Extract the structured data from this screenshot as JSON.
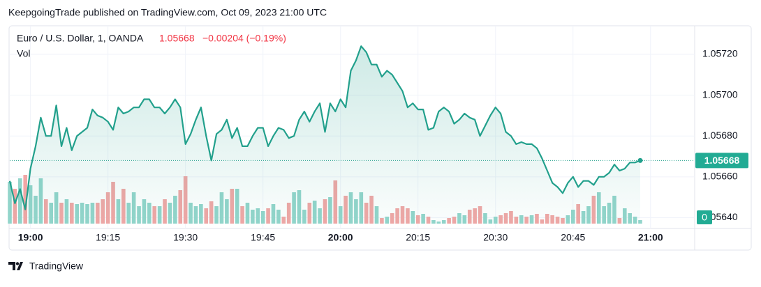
{
  "chart_data": {
    "type": "line",
    "title": "KeepgoingTrade published on TradingView.com, Oct 09, 2023 21:00 UTC",
    "symbol": "Euro / U.S. Dollar, 1, OANDA",
    "legend_price": 1.05668,
    "legend_change": "−0.00204 (−0.19%)",
    "volume_name": "Vol",
    "brand": "TradingView",
    "last_price": 1.05668,
    "volume_axis_label": 0,
    "line_color": "#22a08c",
    "up_color": "#93d5cb",
    "down_color": "#f1a7a6",
    "label_color": "#22ab94",
    "change_color": "#f23645",
    "grid": true,
    "x": [
      "18:56",
      "18:57",
      "18:58",
      "18:59",
      "19:00",
      "19:01",
      "19:02",
      "19:03",
      "19:04",
      "19:05",
      "19:06",
      "19:07",
      "19:08",
      "19:09",
      "19:10",
      "19:11",
      "19:12",
      "19:13",
      "19:14",
      "19:15",
      "19:16",
      "19:17",
      "19:18",
      "19:19",
      "19:20",
      "19:21",
      "19:22",
      "19:23",
      "19:24",
      "19:25",
      "19:26",
      "19:27",
      "19:28",
      "19:29",
      "19:30",
      "19:31",
      "19:32",
      "19:33",
      "19:34",
      "19:35",
      "19:36",
      "19:37",
      "19:38",
      "19:39",
      "19:40",
      "19:41",
      "19:42",
      "19:43",
      "19:44",
      "19:45",
      "19:46",
      "19:47",
      "19:48",
      "19:49",
      "19:50",
      "19:51",
      "19:52",
      "19:53",
      "19:54",
      "19:55",
      "19:56",
      "19:57",
      "19:58",
      "19:59",
      "20:00",
      "20:01",
      "20:02",
      "20:03",
      "20:04",
      "20:05",
      "20:06",
      "20:07",
      "20:08",
      "20:09",
      "20:10",
      "20:11",
      "20:12",
      "20:13",
      "20:14",
      "20:15",
      "20:16",
      "20:17",
      "20:18",
      "20:19",
      "20:20",
      "20:21",
      "20:22",
      "20:23",
      "20:24",
      "20:25",
      "20:26",
      "20:27",
      "20:28",
      "20:29",
      "20:30",
      "20:31",
      "20:32",
      "20:33",
      "20:34",
      "20:35",
      "20:36",
      "20:37",
      "20:38",
      "20:39",
      "20:40",
      "20:41",
      "20:42",
      "20:43",
      "20:44",
      "20:45",
      "20:46",
      "20:47",
      "20:48",
      "20:49",
      "20:50",
      "20:51",
      "20:52",
      "20:53",
      "20:54",
      "20:55",
      "20:56",
      "20:57",
      "20:58"
    ],
    "price": [
      1.05658,
      1.05647,
      1.05654,
      1.05644,
      1.05664,
      1.05675,
      1.05689,
      1.0568,
      1.0568,
      1.05695,
      1.05675,
      1.05684,
      1.05673,
      1.0568,
      1.05682,
      1.05684,
      1.05693,
      1.0569,
      1.05689,
      1.05687,
      1.05683,
      1.05694,
      1.05691,
      1.05692,
      1.05694,
      1.05694,
      1.05698,
      1.05698,
      1.05694,
      1.05694,
      1.05691,
      1.05694,
      1.05698,
      1.05694,
      1.05676,
      1.05681,
      1.05688,
      1.05694,
      1.0568,
      1.05668,
      1.05681,
      1.05683,
      1.05688,
      1.05679,
      1.05684,
      1.05675,
      1.05675,
      1.0568,
      1.05684,
      1.05684,
      1.05675,
      1.0568,
      1.05684,
      1.05683,
      1.05679,
      1.0568,
      1.05688,
      1.05692,
      1.05687,
      1.05692,
      1.05696,
      1.05682,
      1.05696,
      1.05692,
      1.05698,
      1.05694,
      1.05712,
      1.05717,
      1.05724,
      1.05721,
      1.05715,
      1.05715,
      1.05709,
      1.05712,
      1.0571,
      1.05706,
      1.05702,
      1.05694,
      1.05696,
      1.05693,
      1.05693,
      1.05683,
      1.05684,
      1.05692,
      1.05694,
      1.05692,
      1.05686,
      1.05688,
      1.05691,
      1.05689,
      1.05688,
      1.0568,
      1.05685,
      1.0569,
      1.05694,
      1.05691,
      1.05682,
      1.0568,
      1.05676,
      1.05677,
      1.05676,
      1.05676,
      1.05674,
      1.05669,
      1.05663,
      1.05657,
      1.05655,
      1.05652,
      1.05657,
      1.0566,
      1.05655,
      1.05658,
      1.05658,
      1.05656,
      1.0566,
      1.0566,
      1.05662,
      1.05666,
      1.05663,
      1.05664,
      1.05667,
      1.05667,
      1.05668
    ],
    "volume": [
      60,
      50,
      65,
      70,
      55,
      40,
      65,
      35,
      30,
      45,
      30,
      35,
      30,
      28,
      30,
      28,
      30,
      30,
      35,
      45,
      60,
      35,
      50,
      30,
      45,
      25,
      35,
      30,
      25,
      25,
      35,
      30,
      40,
      48,
      68,
      30,
      25,
      28,
      22,
      32,
      25,
      45,
      35,
      50,
      50,
      25,
      30,
      20,
      22,
      18,
      22,
      28,
      20,
      10,
      30,
      45,
      48,
      20,
      30,
      33,
      22,
      35,
      38,
      62,
      25,
      40,
      45,
      35,
      45,
      30,
      40,
      25,
      8,
      10,
      15,
      22,
      25,
      22,
      18,
      12,
      14,
      10,
      5,
      3,
      5,
      8,
      10,
      15,
      12,
      20,
      22,
      25,
      15,
      6,
      10,
      12,
      15,
      18,
      10,
      12,
      10,
      12,
      14,
      6,
      14,
      12,
      10,
      8,
      12,
      20,
      28,
      18,
      25,
      40,
      45,
      25,
      30,
      40,
      8,
      22,
      15,
      10,
      5
    ],
    "xlim": [
      "18:56",
      "21:08"
    ],
    "xticks": [
      "19:00",
      "19:15",
      "19:30",
      "19:45",
      "20:00",
      "20:15",
      "20:30",
      "20:45",
      "21:00"
    ],
    "ylim": [
      1.05634,
      1.05734
    ],
    "yticks": [
      {
        "value": 1.0564,
        "label": "1.05640"
      },
      {
        "value": 1.0566,
        "label": "1.05660"
      },
      {
        "value": 1.0568,
        "label": "1.05680"
      },
      {
        "value": 1.057,
        "label": "1.05700"
      },
      {
        "value": 1.0572,
        "label": "1.05720"
      }
    ]
  }
}
